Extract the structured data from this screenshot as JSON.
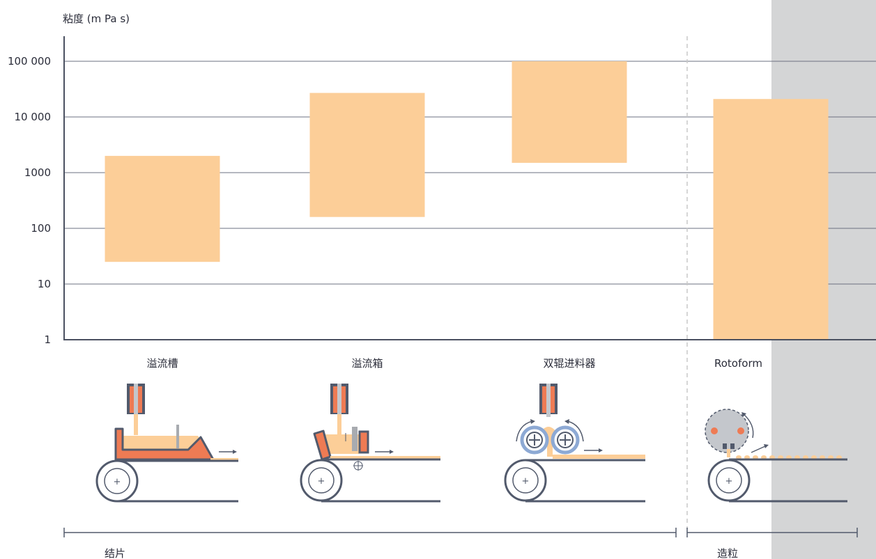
{
  "chart_data": {
    "type": "bar",
    "subtype": "floating-range",
    "y_scale": "log",
    "ylabel": "粘度 (m Pa s)",
    "ylim": [
      1,
      100000
    ],
    "y_ticks": [
      {
        "value": 100000,
        "label": "100 000"
      },
      {
        "value": 10000,
        "label": "10 000"
      },
      {
        "value": 1000,
        "label": "1000"
      },
      {
        "value": 100,
        "label": "100"
      },
      {
        "value": 10,
        "label": "10"
      },
      {
        "value": 1,
        "label": "1"
      }
    ],
    "grid": true,
    "categories": [
      "溢流槽",
      "溢流箱",
      "双辊进料器",
      "Rotoform"
    ],
    "ranges": [
      {
        "category": "溢流槽",
        "low": 25,
        "high": 2000
      },
      {
        "category": "溢流箱",
        "low": 160,
        "high": 27000
      },
      {
        "category": "双辊进料器",
        "low": 1500,
        "high": 100000
      },
      {
        "category": "Rotoform",
        "low": 1,
        "high": 21000
      }
    ],
    "groups": [
      {
        "label": "结片",
        "categories": [
          "溢流槽",
          "溢流箱",
          "双辊进料器"
        ]
      },
      {
        "label": "造粒",
        "categories": [
          "Rotoform"
        ]
      }
    ]
  },
  "colors": {
    "bar": "#fcce98",
    "grid": "#6b7080",
    "axis": "#4a5060",
    "shaded_region": "#d4d5d6",
    "divider": "#c8c8c8",
    "machine_dark": "#525a6c",
    "machine_orange": "#ee7b54",
    "roller_blue": "#8da9d4"
  },
  "illustrations": [
    {
      "category": "溢流槽",
      "icon": "overflow-trough-icon"
    },
    {
      "category": "溢流箱",
      "icon": "overflow-box-icon"
    },
    {
      "category": "双辊进料器",
      "icon": "double-roll-feeder-icon"
    },
    {
      "category": "Rotoform",
      "icon": "rotoform-icon"
    }
  ]
}
